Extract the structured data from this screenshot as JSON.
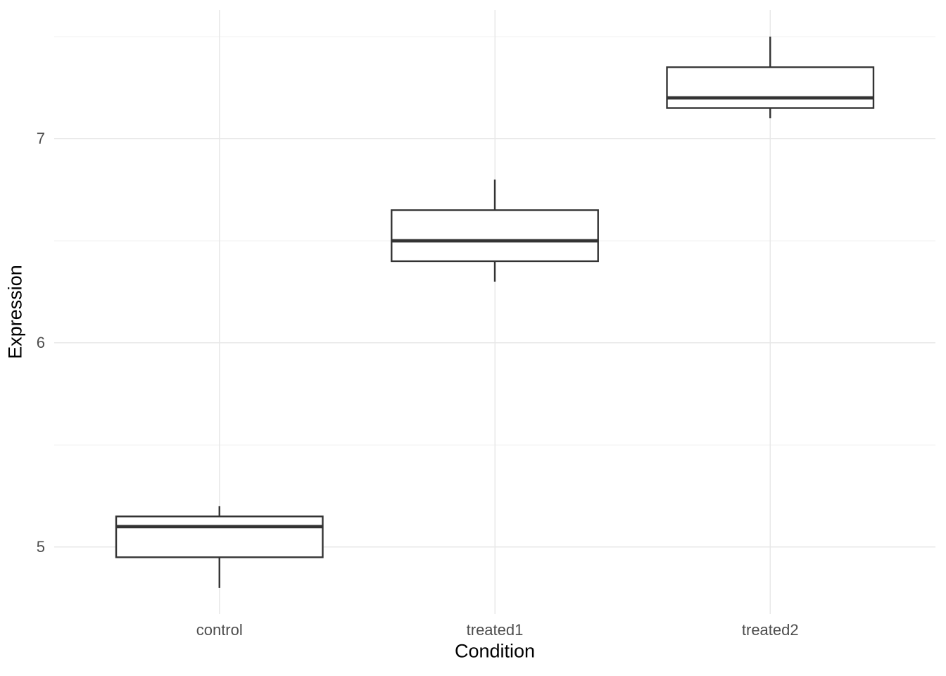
{
  "chart_data": {
    "type": "boxplot",
    "title": "",
    "xlabel": "Condition",
    "ylabel": "Expression",
    "categories": [
      "control",
      "treated1",
      "treated2"
    ],
    "series": [
      {
        "name": "control",
        "min": 4.8,
        "q1": 4.95,
        "median": 5.1,
        "q3": 5.15,
        "max": 5.2
      },
      {
        "name": "treated1",
        "min": 6.3,
        "q1": 6.4,
        "median": 6.5,
        "q3": 6.65,
        "max": 6.8
      },
      {
        "name": "treated2",
        "min": 7.1,
        "q1": 7.15,
        "median": 7.2,
        "q3": 7.35,
        "max": 7.5
      }
    ],
    "y_ticks": [
      7,
      6,
      5
    ],
    "y_minor_ticks": [
      7.5,
      6.5,
      5.5
    ],
    "ylim": [
      4.672,
      7.631
    ],
    "x_domain": [
      0.4,
      3.6
    ],
    "box_width_units": 0.75,
    "grid": true,
    "legend": "none",
    "colors": {
      "box_stroke": "#333333",
      "box_fill": "#FFFFFF",
      "grid_major": "#E8E8E8",
      "grid_minor": "#F0F0F0",
      "tick_label": "#4D4D4D",
      "axis_title": "#000000",
      "background": "#FFFFFF"
    }
  }
}
